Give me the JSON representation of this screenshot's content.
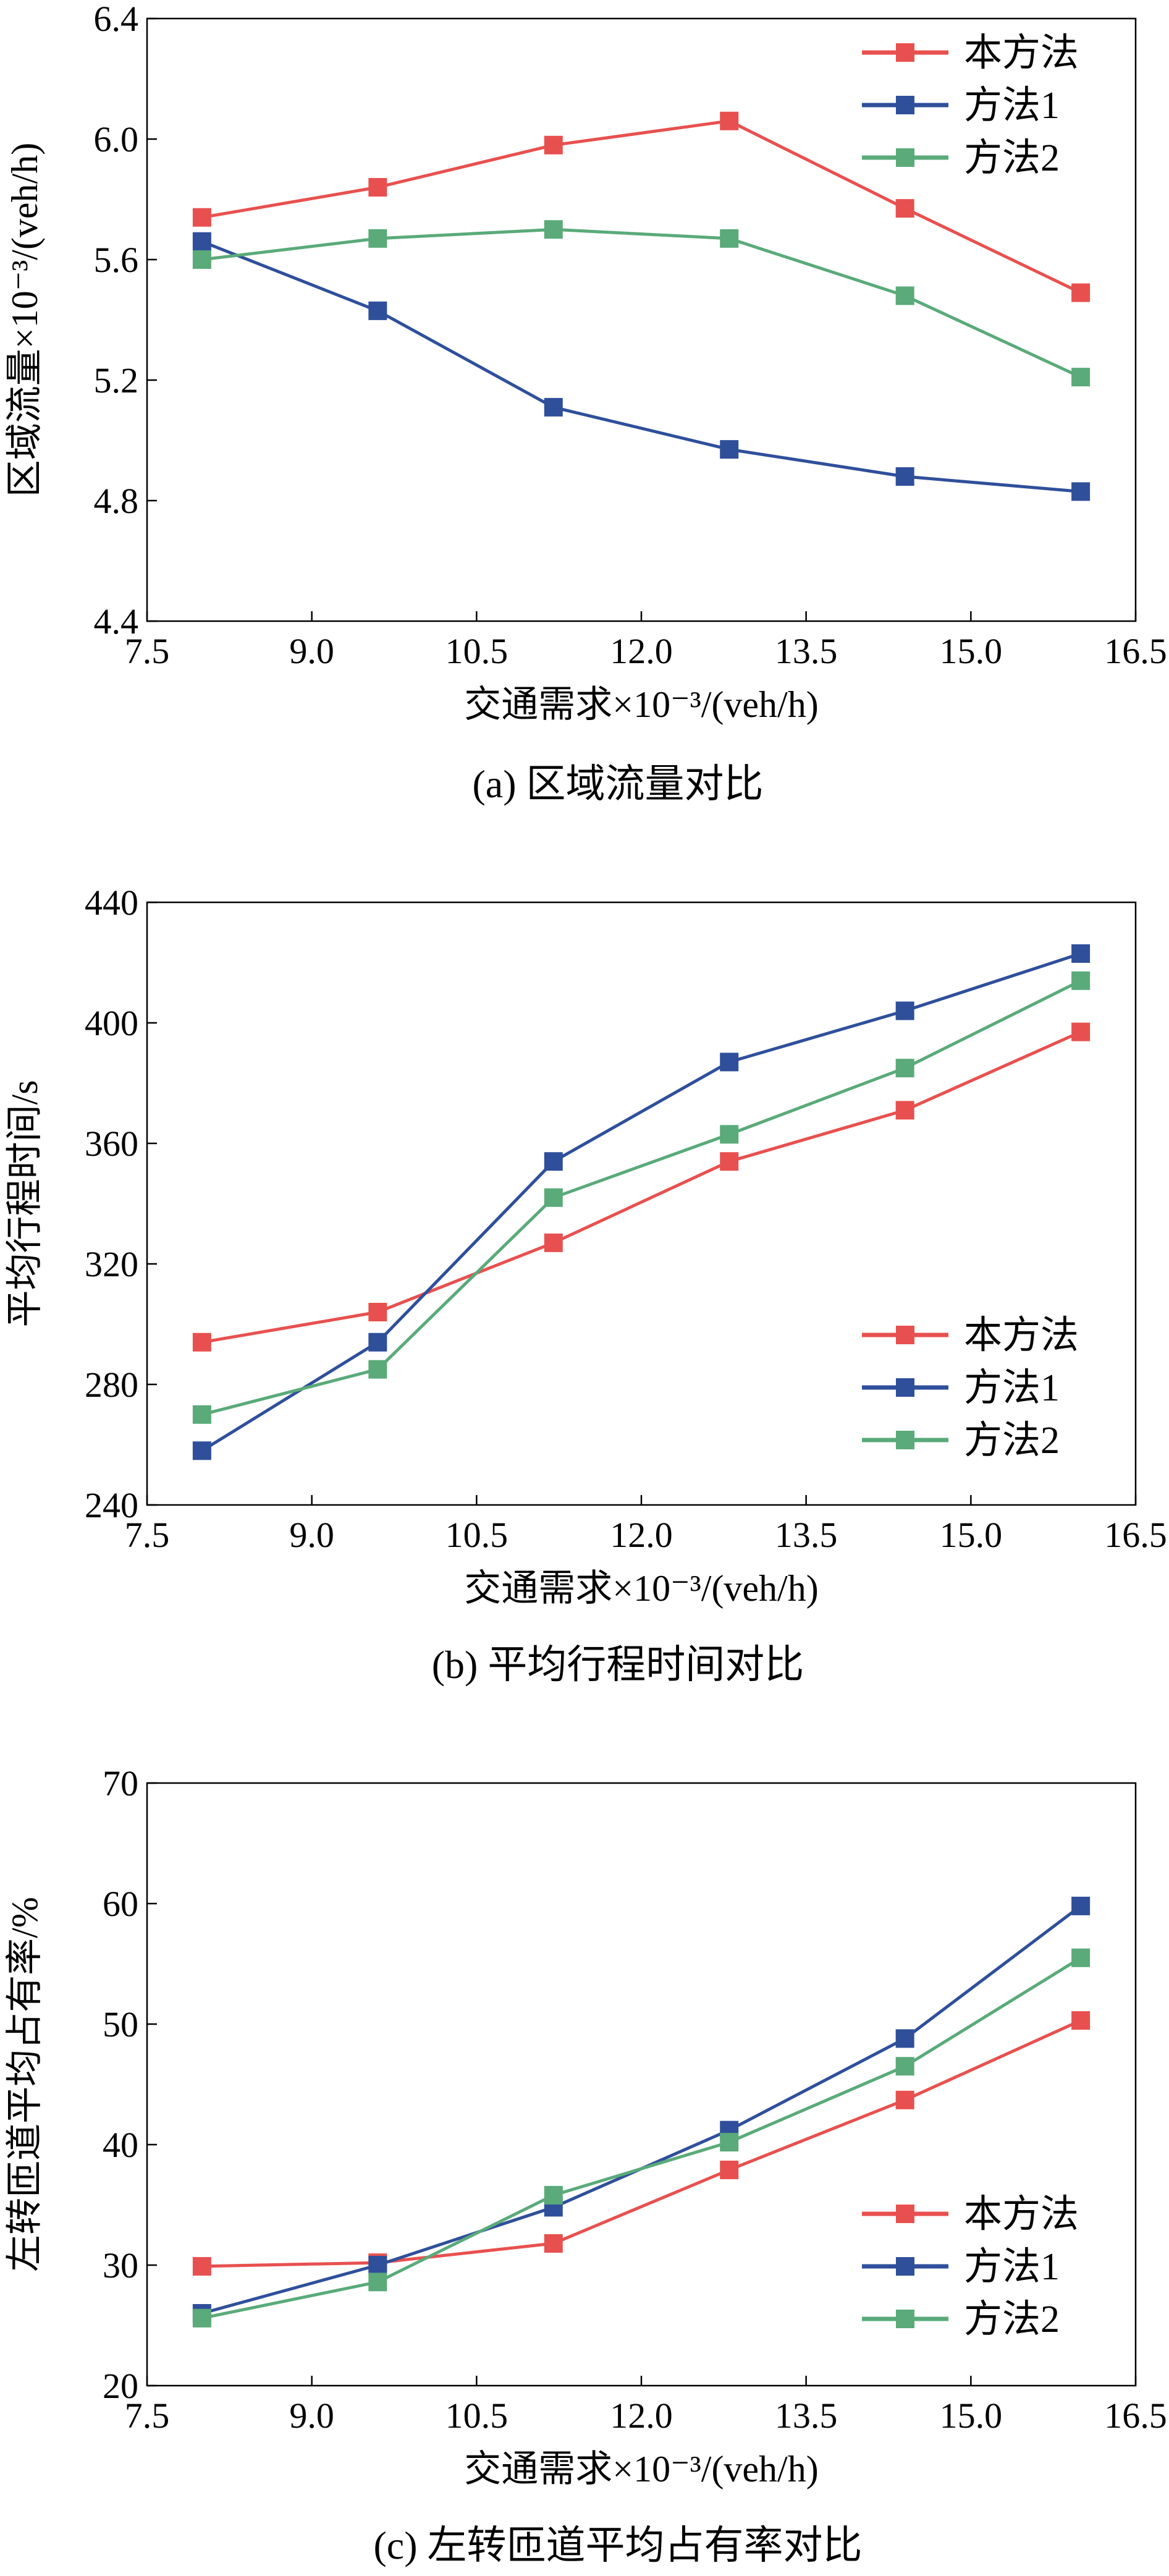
{
  "figure": {
    "panels": [
      {
        "key": "a",
        "caption": "(a) 区域流量对比",
        "legend_position": "top-right",
        "grid": false,
        "xlabel": "交通需求×10⁻³/(veh/h)",
        "ylabel": "区域流量×10⁻³/(veh/h)"
      },
      {
        "key": "b",
        "caption": "(b) 平均行程时间对比",
        "legend_position": "bottom-right",
        "grid": false,
        "xlabel": "交通需求×10⁻³/(veh/h)",
        "ylabel": "平均行程时间/s"
      },
      {
        "key": "c",
        "caption": "(c) 左转匝道平均占有率对比",
        "legend_position": "bottom-right",
        "grid": false,
        "xlabel": "交通需求×10⁻³/(veh/h)",
        "ylabel": "左转匝道平均占有率/%"
      }
    ]
  },
  "chart_data": [
    {
      "type": "line",
      "xlabel": "交通需求×10⁻³/(veh/h)",
      "ylabel": "区域流量×10⁻³/(veh/h)",
      "x": [
        8.0,
        9.6,
        11.2,
        12.8,
        14.4,
        16.0
      ],
      "xlim": [
        7.5,
        16.5
      ],
      "ylim": [
        4.4,
        6.4
      ],
      "xticks": [
        "7.5",
        "9.0",
        "10.5",
        "12.0",
        "13.5",
        "15.0",
        "16.5"
      ],
      "yticks": [
        "4.4",
        "4.8",
        "5.2",
        "5.6",
        "6.0",
        "6.4"
      ],
      "series": [
        {
          "name": "本方法",
          "color": "#e8504f",
          "values": [
            5.74,
            5.84,
            5.98,
            6.06,
            5.77,
            5.49
          ]
        },
        {
          "name": "方法1",
          "color": "#2f4f9b",
          "values": [
            5.66,
            5.43,
            5.11,
            4.97,
            4.88,
            4.83
          ]
        },
        {
          "name": "方法2",
          "color": "#5aaa7a",
          "values": [
            5.6,
            5.67,
            5.7,
            5.67,
            5.48,
            5.21
          ]
        }
      ]
    },
    {
      "type": "line",
      "xlabel": "交通需求×10⁻³/(veh/h)",
      "ylabel": "平均行程时间/s",
      "x": [
        8.0,
        9.6,
        11.2,
        12.8,
        14.4,
        16.0
      ],
      "xlim": [
        7.5,
        16.5
      ],
      "ylim": [
        240,
        440
      ],
      "xticks": [
        "7.5",
        "9.0",
        "10.5",
        "12.0",
        "13.5",
        "15.0",
        "16.5"
      ],
      "yticks": [
        "240",
        "280",
        "320",
        "360",
        "400",
        "440"
      ],
      "series": [
        {
          "name": "本方法",
          "color": "#e8504f",
          "values": [
            294,
            304,
            327,
            354,
            371,
            397
          ]
        },
        {
          "name": "方法1",
          "color": "#2f4f9b",
          "values": [
            258,
            294,
            354,
            387,
            404,
            423
          ]
        },
        {
          "name": "方法2",
          "color": "#5aaa7a",
          "values": [
            270,
            285,
            342,
            363,
            385,
            414
          ]
        }
      ]
    },
    {
      "type": "line",
      "xlabel": "交通需求×10⁻³/(veh/h)",
      "ylabel": "左转匝道平均占有率/%",
      "x": [
        8.0,
        9.6,
        11.2,
        12.8,
        14.4,
        16.0
      ],
      "xlim": [
        7.5,
        16.5
      ],
      "ylim": [
        20,
        70
      ],
      "xticks": [
        "7.5",
        "9.0",
        "10.5",
        "12.0",
        "13.5",
        "15.0",
        "16.5"
      ],
      "yticks": [
        "20",
        "30",
        "40",
        "50",
        "60",
        "70"
      ],
      "series": [
        {
          "name": "本方法",
          "color": "#e8504f",
          "values": [
            29.9,
            30.2,
            31.8,
            37.9,
            43.7,
            50.3
          ]
        },
        {
          "name": "方法1",
          "color": "#2f4f9b",
          "values": [
            26.0,
            30.0,
            34.8,
            41.2,
            48.8,
            59.8
          ]
        },
        {
          "name": "方法2",
          "color": "#5aaa7a",
          "values": [
            25.6,
            28.6,
            35.8,
            40.2,
            46.5,
            55.5
          ]
        }
      ]
    }
  ]
}
